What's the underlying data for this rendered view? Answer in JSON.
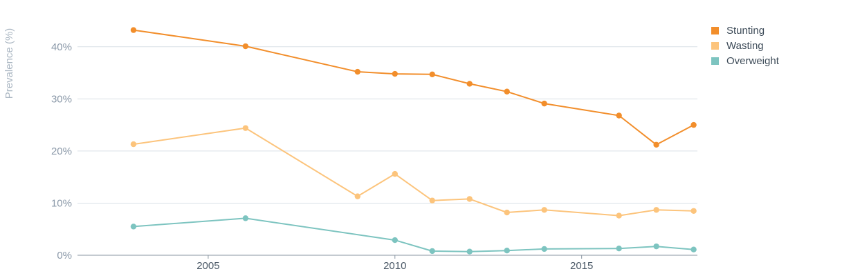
{
  "chart_data": {
    "type": "line",
    "title": "",
    "xlabel": "",
    "ylabel": "Prevalence (%)",
    "xlim": [
      2001.5,
      2018.1
    ],
    "ylim": [
      0,
      45
    ],
    "xticks": [
      2005,
      2010,
      2015
    ],
    "xtick_labels": [
      "2005",
      "2010",
      "2015"
    ],
    "yticks": [
      0,
      10,
      20,
      30,
      40
    ],
    "ytick_labels": [
      "0%",
      "10%",
      "20%",
      "30%",
      "40%"
    ],
    "grid": true,
    "legend_position": "top-right",
    "series": [
      {
        "name": "Stunting",
        "color": "#f28e2b",
        "x": [
          2003,
          2006,
          2009,
          2010,
          2011,
          2012,
          2013,
          2014,
          2016,
          2017,
          2018
        ],
        "y": [
          43.2,
          40.1,
          35.2,
          34.8,
          34.7,
          32.9,
          31.4,
          29.1,
          26.8,
          21.2,
          25.0
        ]
      },
      {
        "name": "Wasting",
        "color": "#fcc47c",
        "x": [
          2003,
          2006,
          2009,
          2010,
          2011,
          2012,
          2013,
          2014,
          2016,
          2017,
          2018
        ],
        "y": [
          21.3,
          24.4,
          11.3,
          15.6,
          10.5,
          10.8,
          8.2,
          8.7,
          7.6,
          8.7,
          8.5
        ]
      },
      {
        "name": "Overweight",
        "color": "#7dc4c0",
        "x": [
          2003,
          2006,
          2010,
          2011,
          2012,
          2013,
          2014,
          2016,
          2017,
          2018
        ],
        "y": [
          5.5,
          7.1,
          2.9,
          0.8,
          0.7,
          0.9,
          1.2,
          1.3,
          1.7,
          1.1
        ]
      }
    ]
  }
}
